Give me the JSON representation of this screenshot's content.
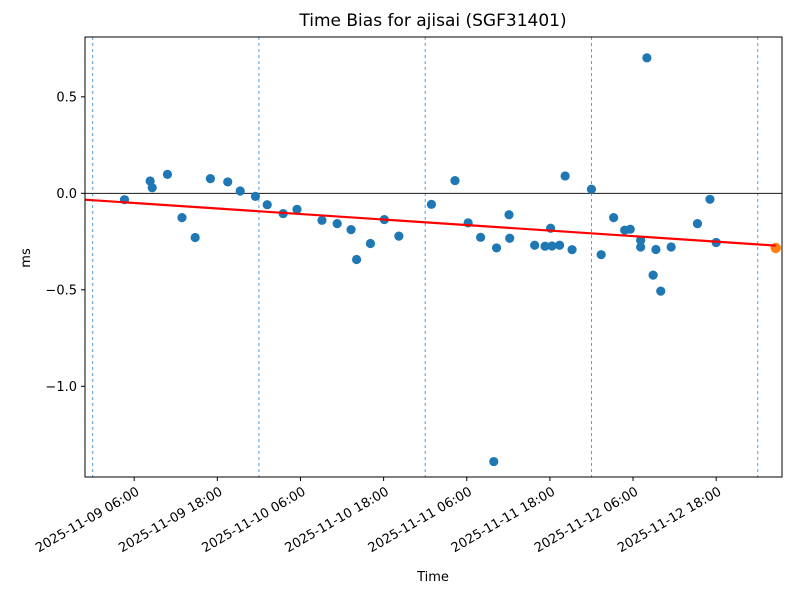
{
  "figure": {
    "title": "Time Bias for ajisai (SGF31401)",
    "xlabel": "Time",
    "ylabel": "ms"
  },
  "chart_data": {
    "type": "scatter",
    "title": "Time Bias for ajisai (SGF31401)",
    "xlabel": "Time",
    "ylabel": "ms",
    "x_unit": "hours since 2025-11-09 00:00",
    "xlim": [
      -1.1,
      99.5
    ],
    "ylim": [
      -1.47,
      0.81
    ],
    "grid": "vertical dashed lines at day boundaries",
    "legend": "none",
    "y_ticks": [
      {
        "v": 0.5,
        "label": "0.5"
      },
      {
        "v": 0.0,
        "label": "0.0"
      },
      {
        "v": -0.5,
        "label": "−0.5"
      },
      {
        "v": -1.0,
        "label": "−1.0"
      }
    ],
    "x_ticks": [
      {
        "t": 6,
        "label": "2025-11-09 06:00"
      },
      {
        "t": 18,
        "label": "2025-11-09 18:00"
      },
      {
        "t": 30,
        "label": "2025-11-10 06:00"
      },
      {
        "t": 42,
        "label": "2025-11-10 18:00"
      },
      {
        "t": 54,
        "label": "2025-11-11 06:00"
      },
      {
        "t": 66,
        "label": "2025-11-11 18:00"
      },
      {
        "t": 78,
        "label": "2025-11-12 06:00"
      },
      {
        "t": 90,
        "label": "2025-11-12 18:00"
      }
    ],
    "day_gridlines": [
      0,
      24,
      48,
      72,
      96
    ],
    "zero_line": 0,
    "series": [
      {
        "name": "time-bias-points",
        "type": "scatter",
        "color": "#1f77b4",
        "marker_radius": 4.6,
        "points": [
          [
            4.6,
            -0.033
          ],
          [
            8.3,
            0.064
          ],
          [
            8.6,
            0.029
          ],
          [
            10.8,
            0.098
          ],
          [
            12.9,
            -0.126
          ],
          [
            14.8,
            -0.229
          ],
          [
            17.0,
            0.076
          ],
          [
            19.5,
            0.059
          ],
          [
            21.3,
            0.012
          ],
          [
            23.5,
            -0.016
          ],
          [
            25.2,
            -0.059
          ],
          [
            27.5,
            -0.105
          ],
          [
            29.5,
            -0.083
          ],
          [
            33.1,
            -0.14
          ],
          [
            35.3,
            -0.157
          ],
          [
            37.3,
            -0.188
          ],
          [
            38.1,
            -0.343
          ],
          [
            40.1,
            -0.26
          ],
          [
            42.1,
            -0.136
          ],
          [
            44.2,
            -0.222
          ],
          [
            48.9,
            -0.057
          ],
          [
            52.3,
            0.066
          ],
          [
            54.2,
            -0.153
          ],
          [
            56.0,
            -0.228
          ],
          [
            57.9,
            -1.39
          ],
          [
            58.3,
            -0.283
          ],
          [
            60.1,
            -0.111
          ],
          [
            60.2,
            -0.233
          ],
          [
            63.8,
            -0.269
          ],
          [
            65.3,
            -0.274
          ],
          [
            66.1,
            -0.181
          ],
          [
            66.3,
            -0.273
          ],
          [
            67.4,
            -0.269
          ],
          [
            68.2,
            0.09
          ],
          [
            69.2,
            -0.292
          ],
          [
            72.0,
            0.021
          ],
          [
            73.4,
            -0.318
          ],
          [
            75.2,
            -0.126
          ],
          [
            76.8,
            -0.191
          ],
          [
            77.6,
            -0.186
          ],
          [
            79.1,
            -0.243
          ],
          [
            79.1,
            -0.278
          ],
          [
            80.0,
            0.702
          ],
          [
            80.9,
            -0.424
          ],
          [
            81.3,
            -0.291
          ],
          [
            82.0,
            -0.507
          ],
          [
            83.5,
            -0.278
          ],
          [
            87.3,
            -0.157
          ],
          [
            89.1,
            -0.031
          ],
          [
            90.0,
            -0.255
          ]
        ]
      },
      {
        "name": "latest-point",
        "type": "scatter",
        "color": "#ff7f0e",
        "marker_radius": 5.2,
        "points": [
          [
            98.6,
            -0.283
          ]
        ]
      },
      {
        "name": "trend-line",
        "type": "line",
        "color": "#ff0000",
        "points": [
          [
            -1.1,
            -0.033
          ],
          [
            98.6,
            -0.271
          ]
        ]
      }
    ]
  }
}
